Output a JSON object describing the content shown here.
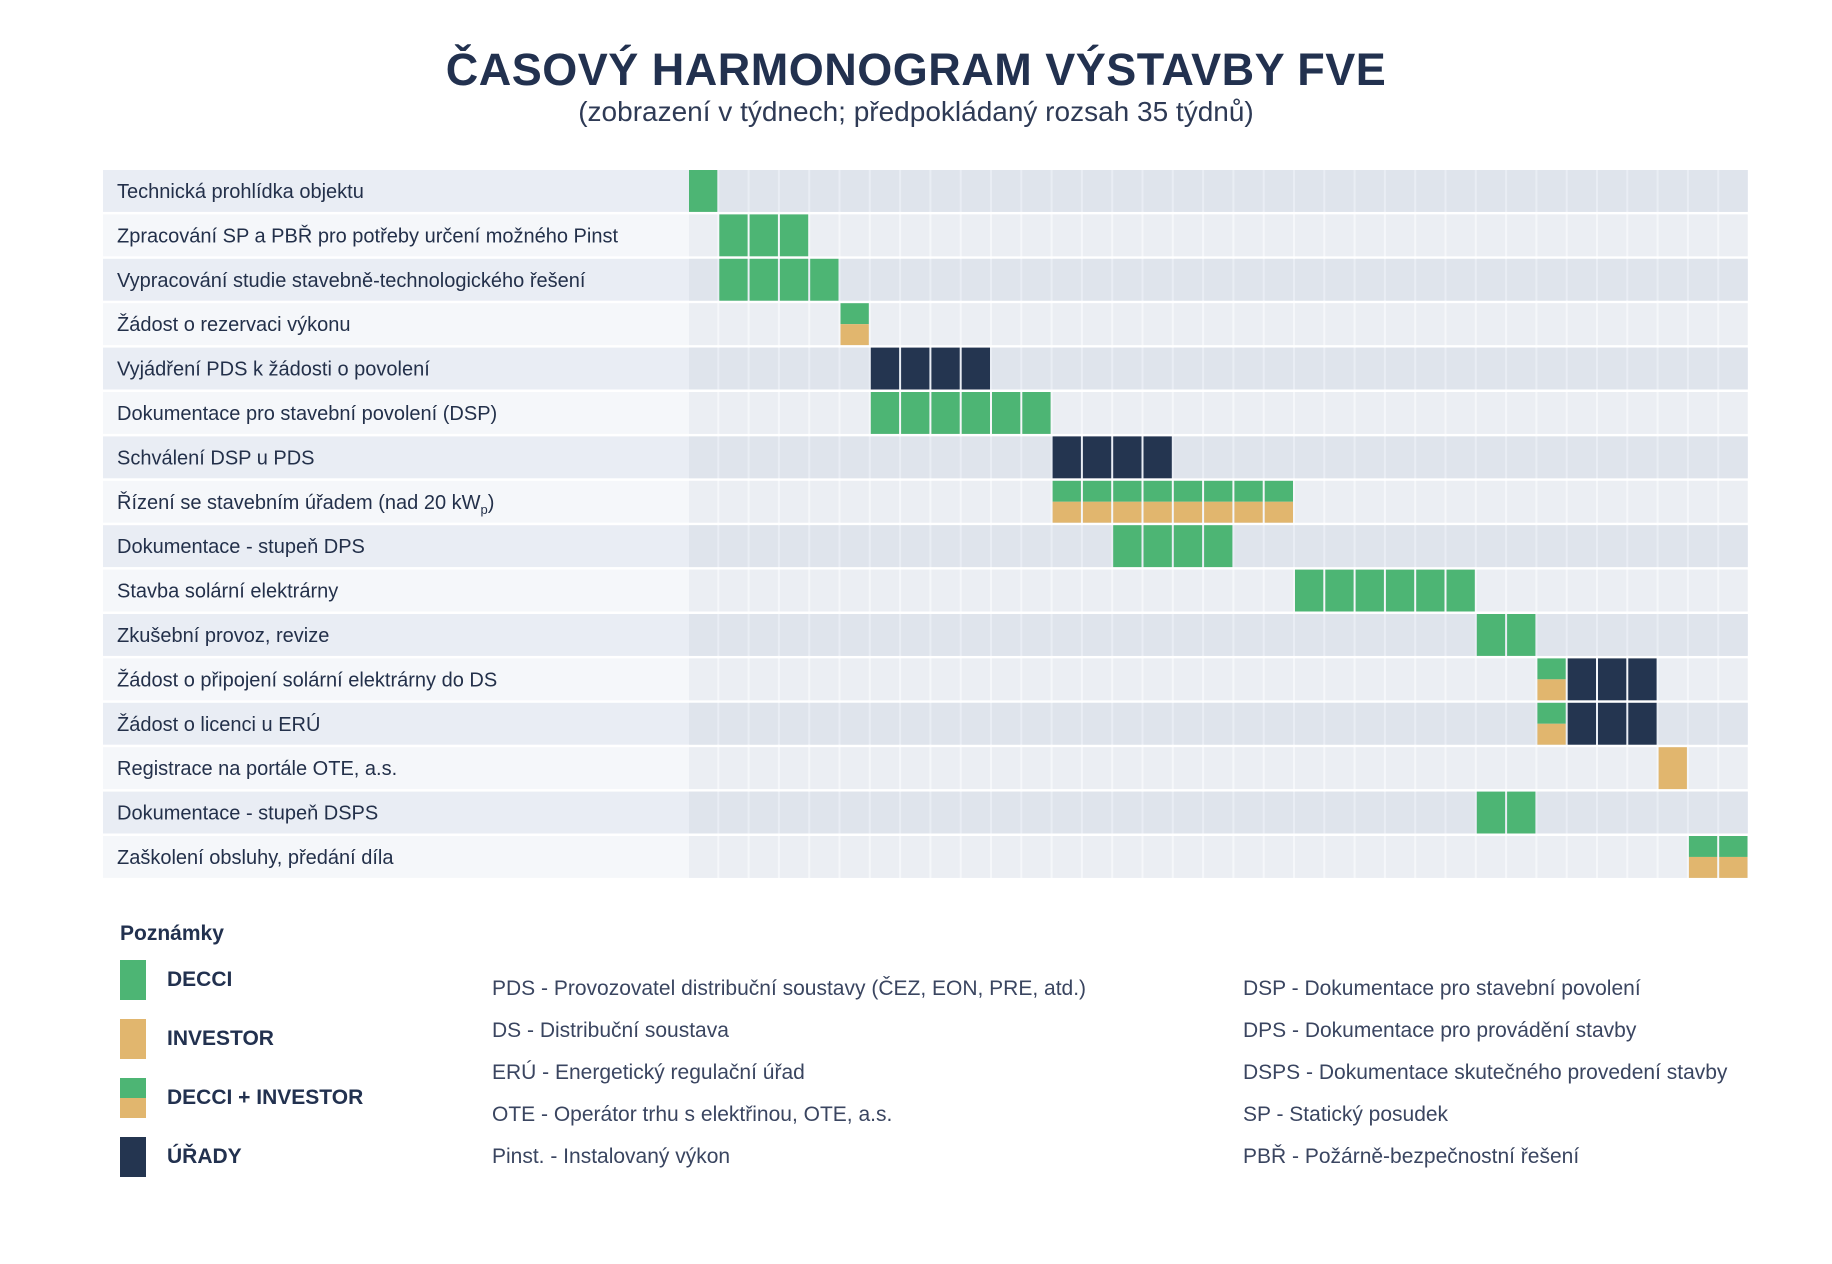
{
  "header": {
    "title": "ČASOVÝ HARMONOGRAM VÝSTAVBY FVE",
    "subtitle": "(zobrazení v týdnech; předpokládaný rozsah 35 týdnů)"
  },
  "colors": {
    "DECCI": "#4db574",
    "INVESTOR": "#e1b66e",
    "URADY": "#243550",
    "row_dark": "#e9edf4",
    "row_light": "#f5f7fa",
    "cell_dark": "#dfe4ec",
    "cell_light": "#ebeef3"
  },
  "chart_data": {
    "type": "gantt",
    "weeks": 35,
    "grid": true,
    "tasks": [
      {
        "label": "Technická prohlídka objektu",
        "start": 1,
        "end": 1,
        "party": "DECCI"
      },
      {
        "label": "Zpracování SP a PBŘ pro potřeby určení možného Pinst",
        "start": 2,
        "end": 4,
        "party": "DECCI"
      },
      {
        "label": "Vypracování studie stavebně-technologického řešení",
        "start": 2,
        "end": 5,
        "party": "DECCI"
      },
      {
        "label": "Žádost o rezervaci výkonu",
        "start": 6,
        "end": 6,
        "party": "DECCI + INVESTOR"
      },
      {
        "label": "Vyjádření PDS k žádosti o povolení",
        "start": 7,
        "end": 10,
        "party": "ÚŘADY"
      },
      {
        "label": "Dokumentace pro stavební povolení (DSP)",
        "start": 7,
        "end": 12,
        "party": "DECCI"
      },
      {
        "label": "Schválení DSP u PDS",
        "start": 13,
        "end": 16,
        "party": "ÚŘADY"
      },
      {
        "label": "Řízení se stavebním úřadem (nad 20 kW",
        "label_sub": "p",
        "label_tail": ")",
        "start": 13,
        "end": 20,
        "party": "DECCI + INVESTOR"
      },
      {
        "label": "Dokumentace - stupeň DPS",
        "start": 15,
        "end": 18,
        "party": "DECCI"
      },
      {
        "label": "Stavba solární elektrárny",
        "start": 21,
        "end": 26,
        "party": "DECCI"
      },
      {
        "label": "Zkušební provoz, revize",
        "start": 27,
        "end": 28,
        "party": "DECCI"
      },
      {
        "label": "Žádost o připojení solární elektrárny do DS",
        "segments": [
          {
            "start": 29,
            "end": 29,
            "party": "DECCI + INVESTOR"
          },
          {
            "start": 30,
            "end": 32,
            "party": "ÚŘADY"
          }
        ]
      },
      {
        "label": "Žádost o licenci u ERÚ",
        "segments": [
          {
            "start": 29,
            "end": 29,
            "party": "DECCI + INVESTOR"
          },
          {
            "start": 30,
            "end": 32,
            "party": "ÚŘADY"
          }
        ]
      },
      {
        "label": "Registrace na portále OTE, a.s.",
        "start": 33,
        "end": 33,
        "party": "INVESTOR"
      },
      {
        "label": "Dokumentace - stupeň DSPS",
        "start": 27,
        "end": 28,
        "party": "DECCI"
      },
      {
        "label": "Zaškolení obsluhy, předání díla",
        "start": 34,
        "end": 35,
        "party": "DECCI + INVESTOR"
      }
    ]
  },
  "legend": {
    "title": "Poznámky",
    "items": [
      {
        "label": "DECCI",
        "key": "DECCI"
      },
      {
        "label": "INVESTOR",
        "key": "INVESTOR"
      },
      {
        "label": "DECCI + INVESTOR",
        "key": "DECCI + INVESTOR"
      },
      {
        "label": "ÚŘADY",
        "key": "ÚŘADY"
      }
    ]
  },
  "abbreviations": {
    "col1": [
      "PDS - Provozovatel distribuční soustavy (ČEZ, EON, PRE, atd.)",
      "DS - Distribuční soustava",
      "ERÚ - Energetický regulační úřad",
      "OTE - Operátor trhu s elektřinou, OTE, a.s.",
      "Pinst. - Instalovaný výkon"
    ],
    "col2": [
      "DSP - Dokumentace pro stavební povolení",
      "DPS - Dokumentace pro provádění stavby",
      "DSPS - Dokumentace skutečného provedení stavby",
      "SP - Statický posudek",
      "PBŘ - Požárně-bezpečnostní řešení"
    ]
  }
}
